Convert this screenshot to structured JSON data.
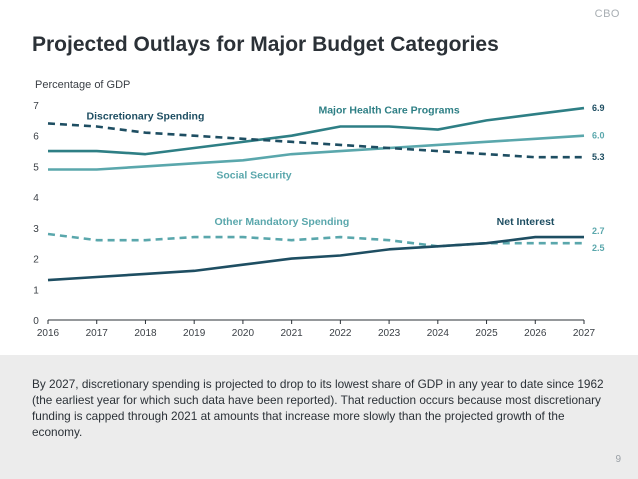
{
  "header": {
    "brand": "CBO",
    "title": "Projected Outlays for Major Budget Categories"
  },
  "chart_data": {
    "type": "line",
    "ylabel": "Percentage of GDP",
    "xlabel": "",
    "x": [
      "2016",
      "2017",
      "2018",
      "2019",
      "2020",
      "2021",
      "2022",
      "2023",
      "2024",
      "2025",
      "2026",
      "2027"
    ],
    "ylim": [
      0,
      7
    ],
    "yticks": [
      0,
      1,
      2,
      3,
      4,
      5,
      6,
      7
    ],
    "grid": false,
    "series": [
      {
        "name": "Major Health Care Programs",
        "values": [
          5.5,
          5.5,
          5.4,
          5.6,
          5.8,
          6.0,
          6.3,
          6.3,
          6.2,
          6.5,
          6.7,
          6.9
        ],
        "color": "#2e7f85",
        "dashed": false,
        "end_label": "6.9",
        "end_label_color": "#1e4e62",
        "label_x": "2023",
        "label_y": 6.72,
        "label_anchor": "middle"
      },
      {
        "name": "Social Security",
        "values": [
          4.9,
          4.9,
          5.0,
          5.1,
          5.2,
          5.4,
          5.5,
          5.6,
          5.7,
          5.8,
          5.9,
          6.0
        ],
        "color": "#5aa7ac",
        "dashed": false,
        "end_label": "6.0",
        "end_label_color": "#5aa7ac",
        "label_x": "2021",
        "label_y": 4.6,
        "label_anchor": "end"
      },
      {
        "name": "Discretionary Spending",
        "values": [
          6.4,
          6.3,
          6.1,
          6.0,
          5.9,
          5.8,
          5.7,
          5.6,
          5.5,
          5.4,
          5.3,
          5.3
        ],
        "color": "#1e4e62",
        "dashed": true,
        "end_label": "5.3",
        "end_label_color": "#1e4e62",
        "label_x": "2018",
        "label_y": 6.52,
        "label_anchor": "middle"
      },
      {
        "name": "Other Mandatory Spending",
        "values": [
          2.8,
          2.6,
          2.6,
          2.7,
          2.7,
          2.6,
          2.7,
          2.6,
          2.4,
          2.5,
          2.5,
          2.5
        ],
        "color": "#5aa7ac",
        "dashed": true,
        "end_label": "2.5",
        "end_label_color": "#5aa7ac",
        "label_x": "2020.8",
        "label_y": 3.1,
        "label_anchor": "middle"
      },
      {
        "name": "Net Interest",
        "values": [
          1.3,
          1.4,
          1.5,
          1.6,
          1.8,
          2.0,
          2.1,
          2.3,
          2.4,
          2.5,
          2.7,
          2.7
        ],
        "color": "#1e4e62",
        "dashed": false,
        "end_label": "2.7",
        "end_label_color": "#5aa7ac",
        "label_x": "2025.8",
        "label_y": 3.1,
        "label_anchor": "middle"
      }
    ]
  },
  "description": "By 2027, discretionary spending is projected to drop to its lowest share of GDP in any year to date since 1962 (the earliest year for which such data have been reported). That reduction occurs because most discretionary funding is capped through 2021 at amounts that increase more slowly than the projected growth of the economy.",
  "page_number": "9"
}
